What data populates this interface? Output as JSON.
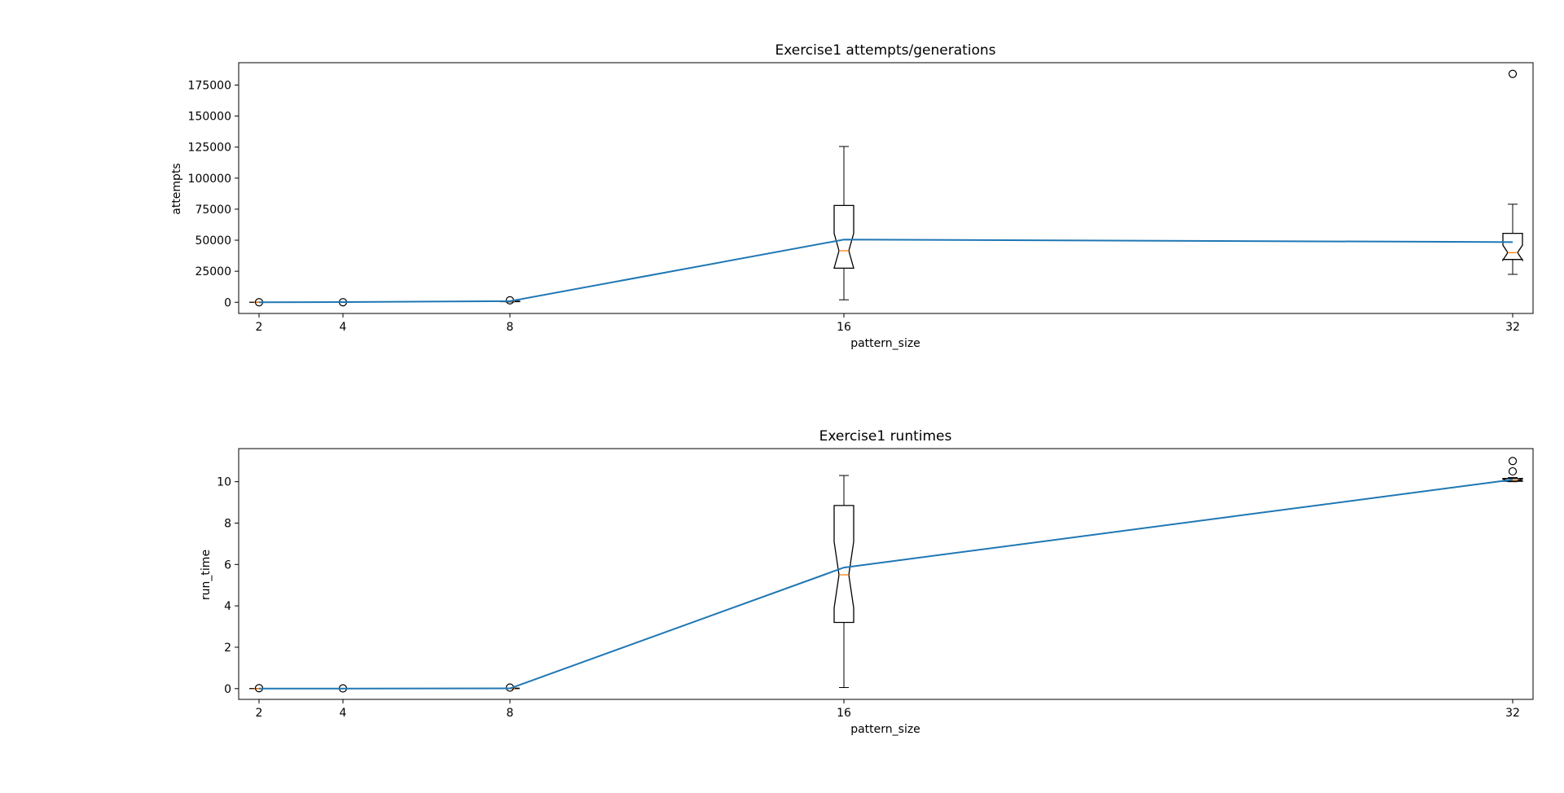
{
  "chart_data": [
    {
      "type": "box",
      "title": "Exercise1 attempts/generations",
      "xlabel": "pattern_size",
      "ylabel": "attempts",
      "x": [
        2,
        4,
        8,
        16,
        32
      ],
      "xticks": [
        "2",
        "4",
        "8",
        "16",
        "32"
      ],
      "yticks": [
        0,
        25000,
        50000,
        75000,
        100000,
        125000,
        150000,
        175000
      ],
      "ylim": [
        -9000,
        193000
      ],
      "grid": false,
      "notched": true,
      "boxes": [
        {
          "x": 2,
          "whisker_low": 0,
          "q1": 0,
          "median": 0,
          "q3": 0,
          "whisker_high": 0,
          "notch_low": 0,
          "notch_high": 0,
          "outliers": [
            0
          ]
        },
        {
          "x": 4,
          "whisker_low": 0,
          "q1": 0,
          "median": 0,
          "q3": 0,
          "whisker_high": 0,
          "notch_low": 0,
          "notch_high": 0,
          "outliers": [
            0
          ]
        },
        {
          "x": 8,
          "whisker_low": 300,
          "q1": 500,
          "median": 700,
          "q3": 900,
          "whisker_high": 1200,
          "notch_low": 550,
          "notch_high": 850,
          "outliers": [
            1600
          ]
        },
        {
          "x": 16,
          "whisker_low": 2000,
          "q1": 27500,
          "median": 41500,
          "q3": 78000,
          "whisker_high": 125500,
          "notch_low": 27500,
          "notch_high": 55500,
          "outliers": []
        },
        {
          "x": 32,
          "whisker_low": 22500,
          "q1": 34500,
          "median": 40000,
          "q3": 55500,
          "whisker_high": 79000,
          "notch_low": 34000,
          "notch_high": 46000,
          "outliers": [
            184000
          ]
        }
      ],
      "mean_line": {
        "color": "#1f77b4",
        "values": [
          0,
          200,
          900,
          50500,
          48500
        ]
      }
    },
    {
      "type": "box",
      "title": "Exercise1 runtimes",
      "xlabel": "pattern_size",
      "ylabel": "run_time",
      "x": [
        2,
        4,
        8,
        16,
        32
      ],
      "xticks": [
        "2",
        "4",
        "8",
        "16",
        "32"
      ],
      "yticks": [
        0,
        2,
        4,
        6,
        8,
        10
      ],
      "ylim": [
        -0.52,
        11.6
      ],
      "grid": false,
      "notched": true,
      "boxes": [
        {
          "x": 2,
          "whisker_low": 0,
          "q1": 0,
          "median": 0,
          "q3": 0,
          "whisker_high": 0,
          "notch_low": 0,
          "notch_high": 0,
          "outliers": [
            0.02
          ]
        },
        {
          "x": 4,
          "whisker_low": 0,
          "q1": 0,
          "median": 0,
          "q3": 0,
          "whisker_high": 0,
          "notch_low": 0,
          "notch_high": 0,
          "outliers": [
            0.01
          ]
        },
        {
          "x": 8,
          "whisker_low": 0,
          "q1": 0,
          "median": 0.01,
          "q3": 0.02,
          "whisker_high": 0.03,
          "notch_low": 0,
          "notch_high": 0.02,
          "outliers": [
            0.05
          ]
        },
        {
          "x": 16,
          "whisker_low": 0.05,
          "q1": 3.2,
          "median": 5.5,
          "q3": 8.85,
          "whisker_high": 10.3,
          "notch_low": 3.9,
          "notch_high": 7.1,
          "outliers": []
        },
        {
          "x": 32,
          "whisker_low": 10.0,
          "q1": 10.02,
          "median": 10.08,
          "q3": 10.16,
          "whisker_high": 10.2,
          "notch_low": 10.04,
          "notch_high": 10.12,
          "outliers": [
            10.5,
            11.0
          ]
        }
      ],
      "mean_line": {
        "color": "#1f77b4",
        "values": [
          0,
          0,
          0.01,
          5.85,
          10.1
        ]
      }
    }
  ]
}
